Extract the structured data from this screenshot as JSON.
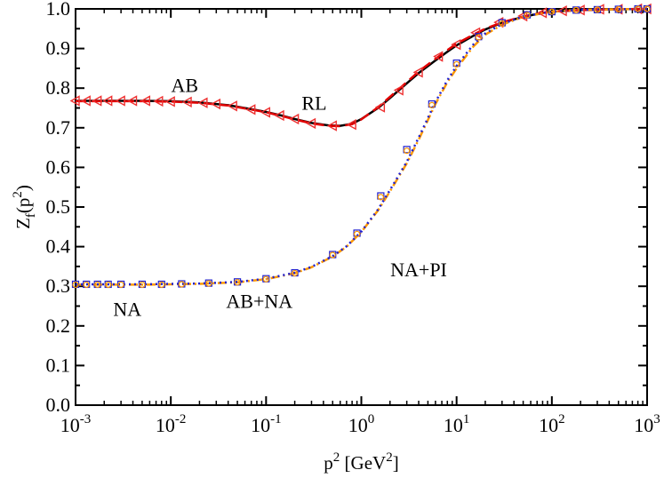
{
  "chart_data": {
    "type": "line",
    "xscale": "log",
    "xlim": [
      0.001,
      1000
    ],
    "ylim": [
      0.0,
      1.0
    ],
    "grid": false,
    "legend": "none",
    "xlabel": {
      "base": "p",
      "sup": "2",
      "unit_open": " [GeV",
      "unit_sup": "2",
      "unit_close": "]"
    },
    "ylabel": {
      "base": "Z",
      "sub": "f",
      "open": "(p",
      "sup": "2",
      "close": ")"
    },
    "x_ticks": [
      {
        "base": "10",
        "exp": "-3"
      },
      {
        "base": "10",
        "exp": "-2"
      },
      {
        "base": "10",
        "exp": "-1"
      },
      {
        "base": "10",
        "exp": "0"
      },
      {
        "base": "10",
        "exp": "1"
      },
      {
        "base": "10",
        "exp": "2"
      },
      {
        "base": "10",
        "exp": "3"
      }
    ],
    "y_ticks": [
      "0.0",
      "0.1",
      "0.2",
      "0.3",
      "0.4",
      "0.5",
      "0.6",
      "0.7",
      "0.8",
      "0.9",
      "1.0"
    ],
    "annotations": [
      {
        "text": "AB",
        "x": 0.014,
        "y": 0.79
      },
      {
        "text": "RL",
        "x": 0.32,
        "y": 0.745
      },
      {
        "text": "NA+PI",
        "x": 4.0,
        "y": 0.325
      },
      {
        "text": "NA",
        "x": 0.0035,
        "y": 0.225
      },
      {
        "text": "AB+NA",
        "x": 0.085,
        "y": 0.245
      }
    ],
    "colors": {
      "black": "#000000",
      "red": "#e00000",
      "orange": "#ff9900",
      "blue": "#2020d0",
      "marker_red": "#ee3030"
    },
    "series": [
      {
        "style": "solid",
        "color": "black",
        "x": [
          0.001,
          0.002,
          0.005,
          0.01,
          0.02,
          0.04,
          0.07,
          0.1,
          0.15,
          0.2,
          0.3,
          0.45,
          0.6,
          0.8,
          1.0,
          1.5,
          2,
          3,
          4,
          6,
          8,
          10,
          15,
          20,
          30,
          50,
          80,
          100,
          200,
          500,
          1000
        ],
        "y": [
          0.768,
          0.768,
          0.768,
          0.767,
          0.764,
          0.757,
          0.747,
          0.74,
          0.73,
          0.722,
          0.712,
          0.706,
          0.705,
          0.71,
          0.722,
          0.75,
          0.775,
          0.812,
          0.838,
          0.87,
          0.892,
          0.908,
          0.932,
          0.948,
          0.965,
          0.98,
          0.99,
          0.993,
          0.997,
          0.999,
          1.0
        ]
      },
      {
        "style": "dashed",
        "color": "red",
        "x": [
          0.001,
          0.002,
          0.005,
          0.01,
          0.02,
          0.04,
          0.07,
          0.1,
          0.15,
          0.2,
          0.3,
          0.45,
          0.6,
          0.8,
          1.0,
          1.5,
          2,
          3,
          4,
          6,
          8,
          10,
          15,
          20,
          30,
          50,
          80,
          100,
          200,
          500,
          1000
        ],
        "y": [
          0.767,
          0.767,
          0.767,
          0.766,
          0.763,
          0.756,
          0.746,
          0.739,
          0.729,
          0.721,
          0.711,
          0.705,
          0.704,
          0.709,
          0.721,
          0.752,
          0.778,
          0.815,
          0.842,
          0.874,
          0.896,
          0.912,
          0.935,
          0.95,
          0.966,
          0.981,
          0.99,
          0.993,
          0.997,
          0.999,
          1.0
        ]
      },
      {
        "style": "dashdot",
        "color": "orange",
        "x": [
          0.001,
          0.002,
          0.005,
          0.01,
          0.02,
          0.05,
          0.1,
          0.2,
          0.3,
          0.5,
          0.7,
          1.0,
          1.5,
          2,
          3,
          4,
          6,
          8,
          10,
          15,
          20,
          30,
          50,
          100,
          200,
          500,
          1000
        ],
        "y": [
          0.304,
          0.304,
          0.304,
          0.305,
          0.306,
          0.31,
          0.318,
          0.333,
          0.348,
          0.375,
          0.4,
          0.437,
          0.492,
          0.54,
          0.61,
          0.67,
          0.76,
          0.815,
          0.85,
          0.905,
          0.935,
          0.96,
          0.98,
          0.993,
          0.998,
          0.999,
          1.0
        ]
      },
      {
        "style": "dotted",
        "color": "blue",
        "x": [
          0.001,
          0.002,
          0.005,
          0.01,
          0.02,
          0.05,
          0.1,
          0.2,
          0.3,
          0.5,
          0.7,
          1.0,
          1.5,
          2,
          3,
          4,
          6,
          8,
          10,
          15,
          20,
          30,
          50,
          100,
          200,
          500,
          1000
        ],
        "y": [
          0.305,
          0.305,
          0.305,
          0.306,
          0.307,
          0.311,
          0.319,
          0.334,
          0.349,
          0.376,
          0.401,
          0.438,
          0.494,
          0.543,
          0.614,
          0.675,
          0.765,
          0.82,
          0.856,
          0.91,
          0.938,
          0.962,
          0.981,
          0.993,
          0.998,
          0.999,
          1.0
        ]
      },
      {
        "style": "markers",
        "marker": "triangle-left",
        "color": "marker_red",
        "x": [
          0.001,
          0.0013,
          0.0017,
          0.0022,
          0.003,
          0.004,
          0.0055,
          0.0075,
          0.01,
          0.015,
          0.022,
          0.03,
          0.045,
          0.07,
          0.1,
          0.14,
          0.2,
          0.3,
          0.5,
          0.8,
          1.6,
          2.5,
          4,
          6.5,
          10,
          16,
          28,
          50,
          80,
          130,
          200,
          320,
          500,
          800,
          1000
        ],
        "y": [
          0.768,
          0.768,
          0.768,
          0.768,
          0.768,
          0.768,
          0.768,
          0.767,
          0.766,
          0.765,
          0.763,
          0.76,
          0.755,
          0.746,
          0.739,
          0.731,
          0.722,
          0.711,
          0.705,
          0.708,
          0.752,
          0.795,
          0.84,
          0.88,
          0.91,
          0.94,
          0.966,
          0.982,
          0.99,
          0.995,
          0.997,
          0.999,
          0.999,
          1.0,
          1.0
        ]
      },
      {
        "style": "markers",
        "marker": "square",
        "color": "blue",
        "x": [
          0.001,
          0.0013,
          0.0017,
          0.0022,
          0.003,
          0.005,
          0.008,
          0.013,
          0.025,
          0.05,
          0.1,
          0.2,
          0.5,
          0.9,
          1.6,
          3,
          5.5,
          10,
          17,
          30,
          55,
          100,
          180,
          300,
          500,
          800,
          1000
        ],
        "y": [
          0.305,
          0.305,
          0.305,
          0.305,
          0.305,
          0.305,
          0.305,
          0.306,
          0.308,
          0.311,
          0.319,
          0.334,
          0.38,
          0.434,
          0.528,
          0.645,
          0.76,
          0.863,
          0.93,
          0.965,
          0.985,
          0.993,
          0.997,
          0.998,
          0.999,
          1.0,
          1.0
        ]
      },
      {
        "style": "markers",
        "marker": "circle",
        "color": "orange",
        "x": [
          0.001,
          0.0013,
          0.0017,
          0.0022,
          0.003,
          0.005,
          0.008,
          0.013,
          0.025,
          0.05,
          0.1,
          0.2,
          0.5,
          0.9,
          1.6,
          3,
          5.5,
          10,
          17,
          30,
          55,
          100,
          180,
          300,
          500,
          800,
          1000
        ],
        "y": [
          0.304,
          0.304,
          0.304,
          0.304,
          0.304,
          0.304,
          0.304,
          0.305,
          0.307,
          0.31,
          0.318,
          0.333,
          0.379,
          0.432,
          0.525,
          0.642,
          0.757,
          0.86,
          0.928,
          0.963,
          0.984,
          0.993,
          0.997,
          0.998,
          0.999,
          1.0,
          1.0
        ]
      }
    ]
  }
}
